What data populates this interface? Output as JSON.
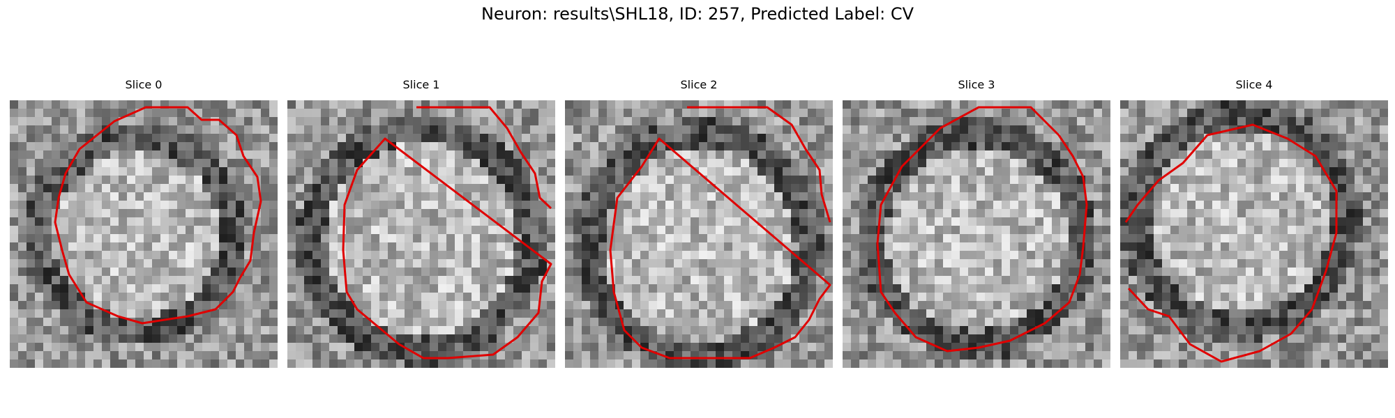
{
  "figure": {
    "title": "Neuron: results\\SHL18, ID: 257, Predicted Label: CV",
    "contour_color": "#e00000",
    "colormap": "gray",
    "panels": [
      {
        "title": "Slice 0"
      },
      {
        "title": "Slice 1"
      },
      {
        "title": "Slice 2"
      },
      {
        "title": "Slice 3"
      },
      {
        "title": "Slice 4"
      }
    ]
  }
}
